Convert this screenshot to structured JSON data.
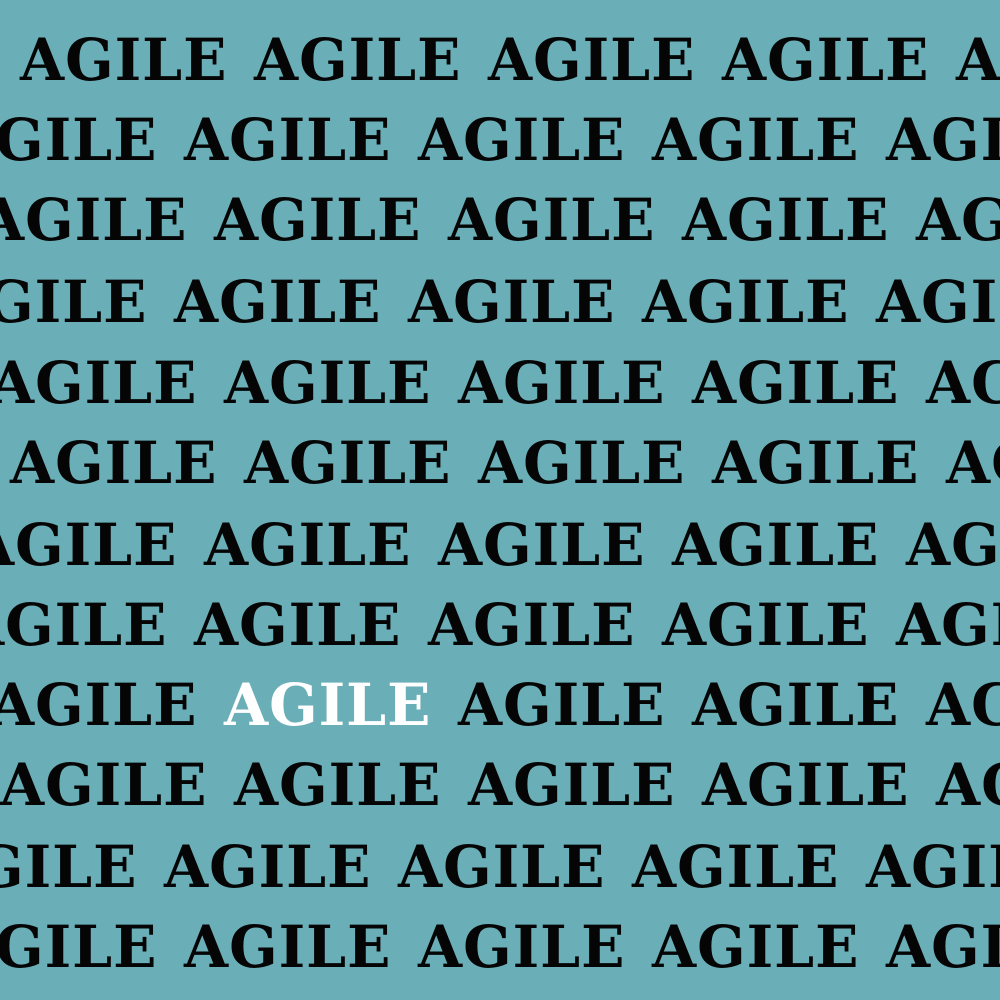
{
  "colors": {
    "background": "#6aaeb7",
    "text": "#050505",
    "highlight": "#ffffff"
  },
  "pattern": {
    "word": "AGILE",
    "highlight_row": 9,
    "highlight_col": 2
  }
}
